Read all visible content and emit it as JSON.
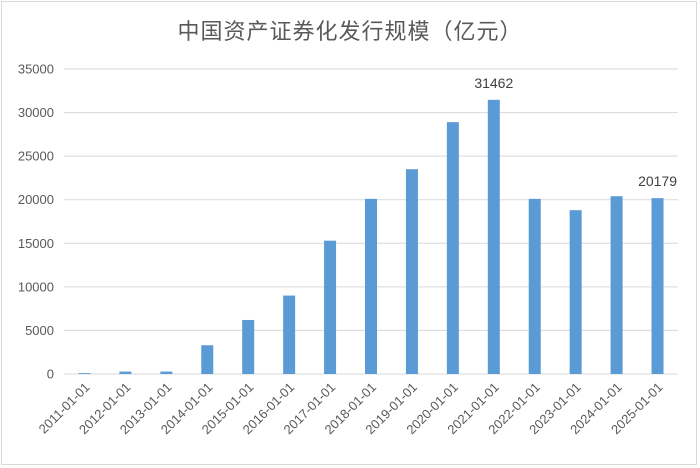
{
  "chart_data": {
    "type": "bar",
    "title": "中国资产证券化发行规模（亿元）",
    "categories": [
      "2011-01-01",
      "2012-01-01",
      "2013-01-01",
      "2014-01-01",
      "2015-01-01",
      "2016-01-01",
      "2017-01-01",
      "2018-01-01",
      "2019-01-01",
      "2020-01-01",
      "2021-01-01",
      "2022-01-01",
      "2023-01-01",
      "2024-01-01",
      "2025-01-01"
    ],
    "values": [
      100,
      280,
      280,
      3300,
      6200,
      9000,
      15300,
      20100,
      23500,
      28900,
      31462,
      20100,
      18800,
      20400,
      20179
    ],
    "ylim": [
      0,
      35000
    ],
    "yticks": [
      0,
      5000,
      10000,
      15000,
      20000,
      25000,
      30000,
      35000
    ],
    "data_labels": [
      {
        "category": "2021-01-01",
        "text": "31462"
      },
      {
        "category": "2025-01-01",
        "text": "20179"
      }
    ],
    "grid": true,
    "legend": "none",
    "bar_color": "#5b9bd5",
    "grid_color": "#d9d9d9",
    "axis_color": "#d9d9d9"
  }
}
